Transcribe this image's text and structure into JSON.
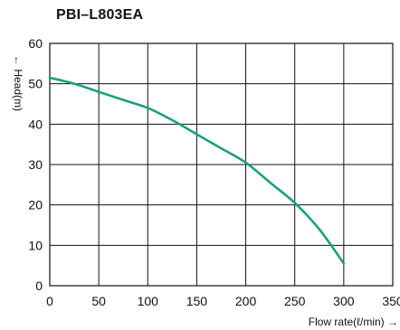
{
  "chart_data": {
    "type": "line",
    "title": "PBI–L803EA",
    "xlabel": "Flow rate(ℓ/min) →",
    "ylabel": "← Head(m)",
    "xlim": [
      0,
      350
    ],
    "ylim": [
      0,
      60
    ],
    "x_ticks": [
      "0",
      "50",
      "100",
      "150",
      "200",
      "250",
      "300",
      "350"
    ],
    "y_ticks": [
      "0",
      "10",
      "20",
      "30",
      "40",
      "50",
      "60"
    ],
    "grid": true,
    "series": [
      {
        "color": "#1aa080",
        "points": [
          [
            0,
            51.5
          ],
          [
            25,
            50.0
          ],
          [
            50,
            48.0
          ],
          [
            75,
            46.0
          ],
          [
            100,
            44.0
          ],
          [
            125,
            41.0
          ],
          [
            150,
            37.5
          ],
          [
            175,
            34.0
          ],
          [
            200,
            30.5
          ],
          [
            225,
            25.5
          ],
          [
            250,
            20.5
          ],
          [
            275,
            14.0
          ],
          [
            300,
            5.5
          ]
        ]
      }
    ]
  }
}
